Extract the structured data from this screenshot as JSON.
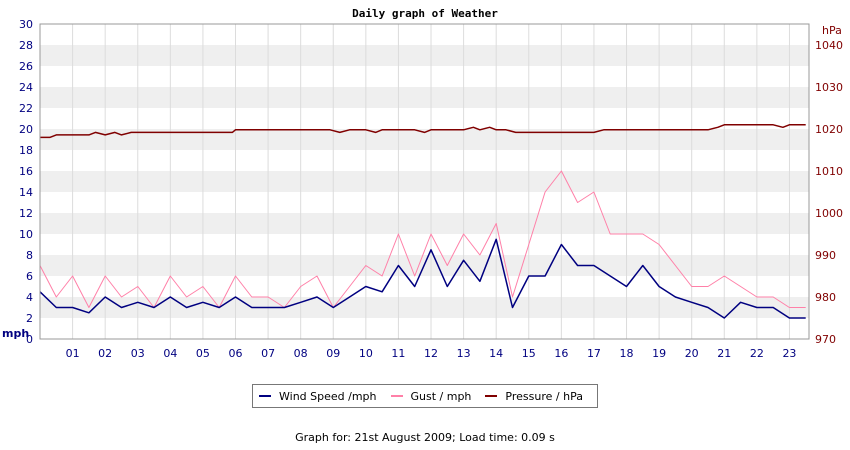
{
  "chart_data": {
    "type": "line",
    "title": "Daily graph of Weather",
    "x_tick_labels": [
      "01",
      "02",
      "03",
      "04",
      "05",
      "06",
      "07",
      "08",
      "09",
      "10",
      "11",
      "12",
      "13",
      "14",
      "15",
      "16",
      "17",
      "18",
      "19",
      "20",
      "21",
      "22",
      "23"
    ],
    "x_range": [
      0,
      23.6
    ],
    "left_axis": {
      "unit_label": "mph",
      "range": [
        0,
        30
      ],
      "ticks": [
        0,
        2,
        4,
        6,
        8,
        10,
        12,
        14,
        16,
        18,
        20,
        22,
        24,
        26,
        28,
        30
      ]
    },
    "right_axis": {
      "unit_label": "hPa",
      "range": [
        970,
        1045
      ],
      "ticks": [
        970,
        980,
        990,
        1000,
        1010,
        1020,
        1030,
        1040
      ]
    },
    "grid": true,
    "legend_placement": "bottom",
    "series": [
      {
        "name": "Wind Speed /mph",
        "axis": "left",
        "color": "#000080",
        "x": [
          0.0,
          0.5,
          1.0,
          1.5,
          2.0,
          2.5,
          3.0,
          3.5,
          4.0,
          4.5,
          5.0,
          5.5,
          6.0,
          6.5,
          7.0,
          7.5,
          8.0,
          8.5,
          9.0,
          9.5,
          10.0,
          10.5,
          11.0,
          11.5,
          12.0,
          12.5,
          13.0,
          13.5,
          14.0,
          14.5,
          15.0,
          15.5,
          16.0,
          16.5,
          17.0,
          17.5,
          18.0,
          18.5,
          19.0,
          19.5,
          20.0,
          20.5,
          21.0,
          21.5,
          22.0,
          22.5,
          23.0,
          23.5
        ],
        "values": [
          4.5,
          3.0,
          3.0,
          2.5,
          4.0,
          3.0,
          3.5,
          3.0,
          4.0,
          3.0,
          3.5,
          3.0,
          4.0,
          3.0,
          3.0,
          3.0,
          3.5,
          4.0,
          3.0,
          4.0,
          5.0,
          4.5,
          7.0,
          5.0,
          8.5,
          5.0,
          7.5,
          5.5,
          9.5,
          3.0,
          6.0,
          6.0,
          9.0,
          7.0,
          7.0,
          6.0,
          5.0,
          7.0,
          5.0,
          4.0,
          3.5,
          3.0,
          2.0,
          3.5,
          3.0,
          3.0,
          2.0,
          2.0
        ]
      },
      {
        "name": "Gust / mph",
        "axis": "left",
        "color": "#ff80a8",
        "x": [
          0.0,
          0.5,
          1.0,
          1.5,
          2.0,
          2.5,
          3.0,
          3.5,
          4.0,
          4.5,
          5.0,
          5.5,
          6.0,
          6.5,
          7.0,
          7.5,
          8.0,
          8.5,
          9.0,
          9.5,
          10.0,
          10.5,
          11.0,
          11.5,
          12.0,
          12.5,
          13.0,
          13.5,
          14.0,
          14.5,
          15.0,
          15.5,
          16.0,
          16.5,
          17.0,
          17.5,
          18.0,
          18.5,
          19.0,
          19.5,
          20.0,
          20.5,
          21.0,
          21.5,
          22.0,
          22.5,
          23.0,
          23.5
        ],
        "values": [
          7,
          4,
          6,
          3,
          6,
          4,
          5,
          3,
          6,
          4,
          5,
          3,
          6,
          4,
          4,
          3,
          5,
          6,
          3,
          5,
          7,
          6,
          10,
          6,
          10,
          7,
          10,
          8,
          11,
          4,
          9,
          14,
          16,
          13,
          14,
          10,
          10,
          10,
          9,
          7,
          5,
          5,
          6,
          5,
          4,
          4,
          3,
          3
        ]
      },
      {
        "name": "Pressure / hPa",
        "axis": "right",
        "color": "#800000",
        "x": [
          0.0,
          0.3,
          0.5,
          1.0,
          1.5,
          1.7,
          2.0,
          2.3,
          2.5,
          2.8,
          3.0,
          4.0,
          5.0,
          5.9,
          6.0,
          7.0,
          8.0,
          8.9,
          9.2,
          9.5,
          10.0,
          10.3,
          10.5,
          11.0,
          11.5,
          11.8,
          12.0,
          12.5,
          13.0,
          13.3,
          13.5,
          13.8,
          14.0,
          14.3,
          14.6,
          15.0,
          16.0,
          17.0,
          17.3,
          18.0,
          19.0,
          20.0,
          20.5,
          20.8,
          21.0,
          21.5,
          22.0,
          22.5,
          22.8,
          23.0,
          23.5
        ],
        "values": [
          1018.0,
          1018.0,
          1018.6,
          1018.6,
          1018.6,
          1019.2,
          1018.6,
          1019.2,
          1018.6,
          1019.2,
          1019.2,
          1019.2,
          1019.2,
          1019.2,
          1019.8,
          1019.8,
          1019.8,
          1019.8,
          1019.2,
          1019.8,
          1019.8,
          1019.2,
          1019.8,
          1019.8,
          1019.8,
          1019.2,
          1019.8,
          1019.8,
          1019.8,
          1020.4,
          1019.8,
          1020.4,
          1019.8,
          1019.8,
          1019.2,
          1019.2,
          1019.2,
          1019.2,
          1019.8,
          1019.8,
          1019.8,
          1019.8,
          1019.8,
          1020.4,
          1021.0,
          1021.0,
          1021.0,
          1021.0,
          1020.4,
          1021.0,
          1021.0
        ]
      }
    ]
  },
  "footer_text": "Graph for: 21st August 2009; Load time: 0.09 s"
}
